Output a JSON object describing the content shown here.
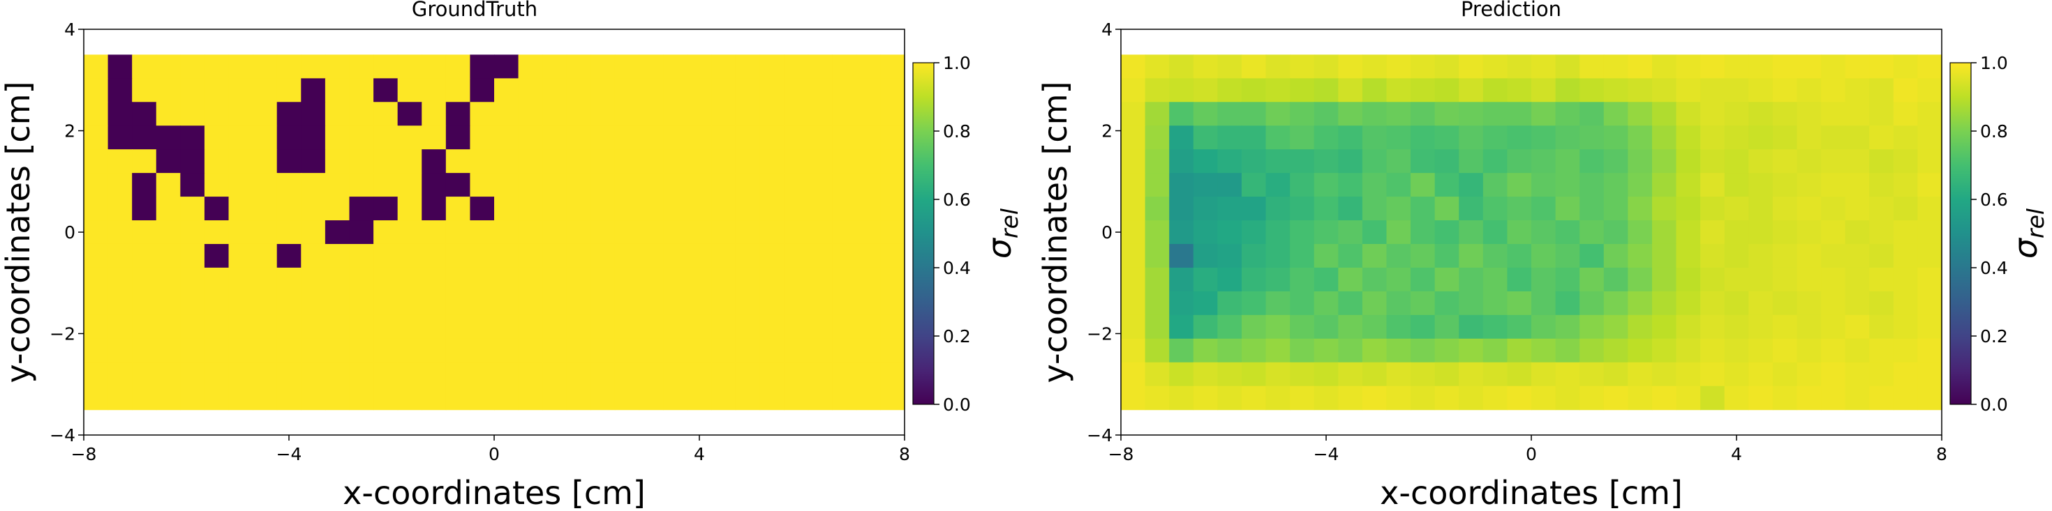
{
  "chart_data": [
    {
      "type": "heatmap",
      "title": "GroundTruth",
      "xlabel": "x-coordinates [cm]",
      "ylabel": "y-coordinates [cm]",
      "xlim": [
        -8,
        8
      ],
      "ylim": [
        -4,
        4
      ],
      "xticks": [
        -8,
        -4,
        0,
        4,
        8
      ],
      "yticks": [
        -4,
        -2,
        0,
        2,
        4
      ],
      "grid": false,
      "colormap": "viridis",
      "colorbar": {
        "label": "σ",
        "label_sub": "rel",
        "range": [
          0,
          1
        ],
        "ticks": [
          "0.0",
          "0.2",
          "0.4",
          "0.6",
          "0.8",
          "1.0"
        ]
      },
      "grid_extent": {
        "x": [
          -8,
          8
        ],
        "y": [
          -3.5,
          3.5
        ],
        "nx": 34,
        "ny": 15
      },
      "default_value": 1.0,
      "zero_cells": [
        [
          5,
          12
        ],
        [
          4,
          11
        ],
        [
          5,
          11
        ],
        [
          2,
          10
        ],
        [
          3,
          10
        ],
        [
          4,
          10
        ],
        [
          5,
          10
        ],
        [
          2,
          9
        ],
        [
          5,
          9
        ],
        [
          2,
          8
        ],
        [
          4,
          8
        ],
        [
          1,
          7
        ],
        [
          1,
          6
        ],
        [
          1,
          5
        ],
        [
          2,
          5
        ],
        [
          1,
          4
        ],
        [
          2,
          4
        ],
        [
          3,
          4
        ],
        [
          4,
          4
        ],
        [
          3,
          3
        ],
        [
          4,
          3
        ],
        [
          2,
          2
        ],
        [
          4,
          2
        ],
        [
          2,
          1
        ],
        [
          5,
          1
        ],
        [
          5,
          -1
        ],
        [
          12,
          10
        ],
        [
          11,
          9
        ],
        [
          13,
          9
        ],
        [
          11,
          8
        ],
        [
          13,
          8
        ],
        [
          10,
          8
        ],
        [
          9,
          6
        ],
        [
          12,
          6
        ],
        [
          8,
          5
        ],
        [
          9,
          5
        ],
        [
          13,
          5
        ],
        [
          8,
          4
        ],
        [
          9,
          4
        ],
        [
          8,
          3
        ],
        [
          9,
          3
        ],
        [
          11,
          1
        ],
        [
          12,
          1
        ],
        [
          10,
          0
        ],
        [
          11,
          0
        ],
        [
          8,
          -1
        ],
        [
          17,
          9
        ],
        [
          16,
          8
        ],
        [
          16,
          7
        ],
        [
          17,
          7
        ],
        [
          16,
          6
        ],
        [
          15,
          5
        ],
        [
          15,
          4
        ],
        [
          14,
          3
        ],
        [
          14,
          2
        ],
        [
          15,
          2
        ],
        [
          14,
          1
        ],
        [
          16,
          1
        ]
      ]
    },
    {
      "type": "heatmap",
      "title": "Prediction",
      "xlabel": "x-coordinates [cm]",
      "ylabel": "y-coordinates [cm]",
      "xlim": [
        -8,
        8
      ],
      "ylim": [
        -4,
        4
      ],
      "xticks": [
        -8,
        -4,
        0,
        4,
        8
      ],
      "yticks": [
        -4,
        -2,
        0,
        2,
        4
      ],
      "grid": false,
      "colormap": "viridis",
      "colorbar": {
        "label": "σ",
        "label_sub": "rel",
        "range": [
          0,
          1
        ],
        "ticks": [
          "0.0",
          "0.2",
          "0.4",
          "0.6",
          "0.8",
          "1.0"
        ]
      },
      "grid_extent": {
        "x": [
          -8,
          8
        ],
        "y": [
          -3.5,
          3.5
        ],
        "nx": 34,
        "ny": 15
      },
      "values": [
        [
          0.98,
          0.96,
          0.94,
          0.96,
          0.95,
          0.97,
          0.95,
          0.96,
          0.95,
          0.97,
          0.96,
          0.97,
          0.96,
          0.95,
          0.97,
          0.96,
          0.95,
          0.96,
          0.94,
          0.97,
          0.97,
          0.98,
          0.96,
          0.97,
          0.98,
          0.97,
          0.97,
          0.98,
          0.98,
          0.97,
          0.98,
          0.98,
          0.97,
          0.98
        ],
        [
          0.97,
          0.93,
          0.92,
          0.93,
          0.91,
          0.9,
          0.91,
          0.9,
          0.89,
          0.93,
          0.89,
          0.92,
          0.91,
          0.9,
          0.93,
          0.9,
          0.91,
          0.93,
          0.89,
          0.91,
          0.92,
          0.93,
          0.94,
          0.96,
          0.95,
          0.95,
          0.96,
          0.97,
          0.96,
          0.97,
          0.96,
          0.95,
          0.98,
          0.97
        ],
        [
          0.96,
          0.86,
          0.72,
          0.76,
          0.74,
          0.74,
          0.78,
          0.76,
          0.74,
          0.78,
          0.76,
          0.77,
          0.75,
          0.78,
          0.77,
          0.76,
          0.76,
          0.79,
          0.76,
          0.74,
          0.8,
          0.84,
          0.88,
          0.93,
          0.95,
          0.94,
          0.93,
          0.94,
          0.95,
          0.96,
          0.96,
          0.95,
          0.97,
          0.96
        ],
        [
          0.96,
          0.85,
          0.58,
          0.68,
          0.66,
          0.66,
          0.72,
          0.74,
          0.71,
          0.69,
          0.73,
          0.72,
          0.7,
          0.71,
          0.74,
          0.72,
          0.71,
          0.72,
          0.74,
          0.75,
          0.76,
          0.8,
          0.86,
          0.91,
          0.94,
          0.93,
          0.92,
          0.93,
          0.95,
          0.94,
          0.94,
          0.96,
          0.95,
          0.96
        ],
        [
          0.96,
          0.84,
          0.56,
          0.6,
          0.62,
          0.64,
          0.66,
          0.66,
          0.68,
          0.66,
          0.72,
          0.74,
          0.69,
          0.68,
          0.73,
          0.7,
          0.73,
          0.74,
          0.76,
          0.72,
          0.74,
          0.79,
          0.84,
          0.9,
          0.93,
          0.92,
          0.94,
          0.95,
          0.94,
          0.95,
          0.95,
          0.93,
          0.94,
          0.96
        ],
        [
          0.96,
          0.84,
          0.52,
          0.54,
          0.54,
          0.66,
          0.62,
          0.68,
          0.72,
          0.7,
          0.74,
          0.72,
          0.78,
          0.7,
          0.66,
          0.74,
          0.78,
          0.75,
          0.76,
          0.74,
          0.76,
          0.8,
          0.86,
          0.91,
          0.95,
          0.92,
          0.93,
          0.94,
          0.95,
          0.96,
          0.96,
          0.94,
          0.95,
          0.97
        ],
        [
          0.96,
          0.82,
          0.52,
          0.56,
          0.58,
          0.58,
          0.64,
          0.66,
          0.7,
          0.66,
          0.74,
          0.76,
          0.72,
          0.78,
          0.68,
          0.72,
          0.74,
          0.72,
          0.78,
          0.74,
          0.76,
          0.82,
          0.88,
          0.9,
          0.93,
          0.94,
          0.93,
          0.95,
          0.96,
          0.95,
          0.96,
          0.95,
          0.94,
          0.96
        ],
        [
          0.96,
          0.84,
          0.54,
          0.58,
          0.6,
          0.62,
          0.66,
          0.7,
          0.72,
          0.74,
          0.7,
          0.78,
          0.72,
          0.7,
          0.74,
          0.7,
          0.76,
          0.74,
          0.72,
          0.76,
          0.74,
          0.8,
          0.86,
          0.91,
          0.95,
          0.93,
          0.93,
          0.94,
          0.95,
          0.96,
          0.94,
          0.95,
          0.96,
          0.96
        ],
        [
          0.96,
          0.84,
          0.4,
          0.56,
          0.58,
          0.64,
          0.66,
          0.7,
          0.76,
          0.72,
          0.78,
          0.74,
          0.76,
          0.72,
          0.78,
          0.74,
          0.72,
          0.76,
          0.74,
          0.7,
          0.78,
          0.82,
          0.86,
          0.91,
          0.94,
          0.93,
          0.94,
          0.95,
          0.96,
          0.95,
          0.95,
          0.94,
          0.96,
          0.96
        ],
        [
          0.96,
          0.86,
          0.56,
          0.62,
          0.6,
          0.66,
          0.68,
          0.72,
          0.7,
          0.78,
          0.74,
          0.76,
          0.72,
          0.78,
          0.74,
          0.76,
          0.7,
          0.74,
          0.72,
          0.78,
          0.74,
          0.8,
          0.86,
          0.9,
          0.93,
          0.94,
          0.94,
          0.95,
          0.96,
          0.96,
          0.95,
          0.96,
          0.96,
          0.97
        ],
        [
          0.96,
          0.86,
          0.58,
          0.6,
          0.68,
          0.7,
          0.74,
          0.72,
          0.76,
          0.72,
          0.78,
          0.74,
          0.76,
          0.72,
          0.74,
          0.76,
          0.78,
          0.74,
          0.7,
          0.76,
          0.8,
          0.84,
          0.88,
          0.91,
          0.94,
          0.93,
          0.95,
          0.94,
          0.95,
          0.96,
          0.95,
          0.94,
          0.96,
          0.97
        ],
        [
          0.96,
          0.86,
          0.6,
          0.68,
          0.72,
          0.78,
          0.8,
          0.76,
          0.74,
          0.78,
          0.76,
          0.72,
          0.7,
          0.74,
          0.68,
          0.7,
          0.72,
          0.76,
          0.78,
          0.82,
          0.84,
          0.88,
          0.9,
          0.93,
          0.95,
          0.94,
          0.95,
          0.96,
          0.95,
          0.96,
          0.97,
          0.95,
          0.96,
          0.97
        ],
        [
          0.97,
          0.88,
          0.76,
          0.82,
          0.8,
          0.82,
          0.84,
          0.8,
          0.82,
          0.8,
          0.84,
          0.82,
          0.8,
          0.82,
          0.84,
          0.82,
          0.86,
          0.84,
          0.82,
          0.86,
          0.88,
          0.9,
          0.92,
          0.94,
          0.96,
          0.95,
          0.96,
          0.97,
          0.96,
          0.97,
          0.96,
          0.97,
          0.97,
          0.98
        ],
        [
          0.98,
          0.95,
          0.92,
          0.94,
          0.93,
          0.92,
          0.94,
          0.93,
          0.92,
          0.94,
          0.93,
          0.95,
          0.94,
          0.93,
          0.95,
          0.94,
          0.93,
          0.95,
          0.96,
          0.95,
          0.94,
          0.96,
          0.95,
          0.96,
          0.97,
          0.96,
          0.97,
          0.96,
          0.97,
          0.98,
          0.97,
          0.97,
          0.98,
          0.98
        ],
        [
          0.98,
          0.97,
          0.96,
          0.97,
          0.96,
          0.97,
          0.96,
          0.97,
          0.96,
          0.97,
          0.98,
          0.97,
          0.96,
          0.97,
          0.96,
          0.97,
          0.98,
          0.97,
          0.96,
          0.97,
          0.98,
          0.97,
          0.98,
          0.97,
          0.93,
          0.97,
          0.98,
          0.97,
          0.98,
          0.98,
          0.97,
          0.98,
          0.98,
          0.98
        ]
      ]
    }
  ]
}
